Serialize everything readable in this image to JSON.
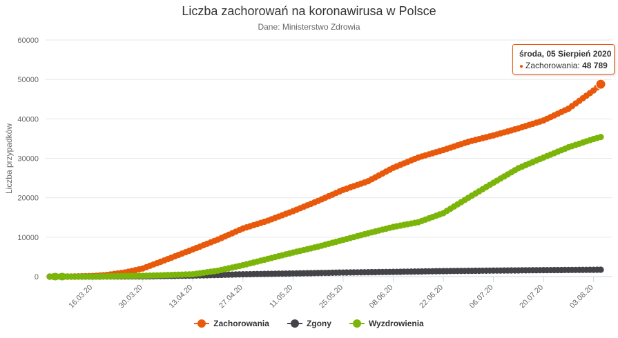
{
  "chart_data": {
    "type": "line",
    "title": "Liczba zachorowań na koronawirusa w Polsce",
    "subtitle": "Dane: Ministerstwo Zdrowia",
    "ylabel": "Liczba przypadków",
    "ylim": [
      0,
      60000
    ],
    "yticks": [
      0,
      10000,
      20000,
      30000,
      40000,
      50000,
      60000
    ],
    "ytick_labels": [
      "0",
      "10000",
      "20000",
      "30000",
      "40000",
      "50000",
      "60000"
    ],
    "x_start": "2020-03-04",
    "x_end": "2020-08-05",
    "xtick_labels": [
      "16.03.20",
      "30.03.20",
      "13.04.20",
      "27.04.20",
      "11.05.20",
      "25.05.20",
      "08.06.20",
      "22.06.20",
      "06.07.20",
      "20.07.20",
      "03.08.20"
    ],
    "xtick_dates": [
      "2020-03-16",
      "2020-03-30",
      "2020-04-13",
      "2020-04-27",
      "2020-05-11",
      "2020-05-25",
      "2020-06-08",
      "2020-06-22",
      "2020-07-06",
      "2020-07-20",
      "2020-08-03"
    ],
    "legend_position": "bottom-center",
    "grid": true,
    "series": [
      {
        "name": "Zachorowania",
        "color": "#e8590c",
        "points": [
          [
            "2020-03-04",
            0
          ],
          [
            "2020-03-10",
            20
          ],
          [
            "2020-03-16",
            150
          ],
          [
            "2020-03-20",
            430
          ],
          [
            "2020-03-25",
            1050
          ],
          [
            "2020-03-30",
            2050
          ],
          [
            "2020-04-05",
            4100
          ],
          [
            "2020-04-13",
            6900
          ],
          [
            "2020-04-20",
            9400
          ],
          [
            "2020-04-27",
            12200
          ],
          [
            "2020-05-04",
            14200
          ],
          [
            "2020-05-11",
            16600
          ],
          [
            "2020-05-18",
            19200
          ],
          [
            "2020-05-25",
            22000
          ],
          [
            "2020-06-01",
            24200
          ],
          [
            "2020-06-08",
            27600
          ],
          [
            "2020-06-15",
            30200
          ],
          [
            "2020-06-22",
            32100
          ],
          [
            "2020-06-29",
            34200
          ],
          [
            "2020-07-06",
            35800
          ],
          [
            "2020-07-13",
            37600
          ],
          [
            "2020-07-20",
            39600
          ],
          [
            "2020-07-27",
            42600
          ],
          [
            "2020-08-03",
            47200
          ],
          [
            "2020-08-05",
            48789
          ]
        ]
      },
      {
        "name": "Zgony",
        "color": "#434348",
        "points": [
          [
            "2020-03-04",
            0
          ],
          [
            "2020-03-16",
            5
          ],
          [
            "2020-03-30",
            40
          ],
          [
            "2020-04-13",
            250
          ],
          [
            "2020-04-27",
            590
          ],
          [
            "2020-05-11",
            800
          ],
          [
            "2020-05-25",
            1040
          ],
          [
            "2020-06-08",
            1200
          ],
          [
            "2020-06-22",
            1400
          ],
          [
            "2020-07-06",
            1530
          ],
          [
            "2020-07-20",
            1640
          ],
          [
            "2020-08-03",
            1730
          ],
          [
            "2020-08-05",
            1756
          ]
        ]
      },
      {
        "name": "Wyzdrowienia",
        "color": "#7cb50a",
        "points": [
          [
            "2020-03-04",
            0
          ],
          [
            "2020-03-16",
            10
          ],
          [
            "2020-03-30",
            200
          ],
          [
            "2020-04-13",
            600
          ],
          [
            "2020-04-20",
            1500
          ],
          [
            "2020-04-27",
            2900
          ],
          [
            "2020-05-04",
            4500
          ],
          [
            "2020-05-11",
            6100
          ],
          [
            "2020-05-18",
            7600
          ],
          [
            "2020-05-25",
            9300
          ],
          [
            "2020-06-01",
            11000
          ],
          [
            "2020-06-08",
            12600
          ],
          [
            "2020-06-15",
            13800
          ],
          [
            "2020-06-22",
            16100
          ],
          [
            "2020-06-29",
            20000
          ],
          [
            "2020-07-06",
            23800
          ],
          [
            "2020-07-13",
            27500
          ],
          [
            "2020-07-20",
            30200
          ],
          [
            "2020-07-27",
            32800
          ],
          [
            "2020-08-03",
            34900
          ],
          [
            "2020-08-05",
            35400
          ]
        ]
      }
    ],
    "tooltip": {
      "title": "środa, 05 Sierpień 2020",
      "series_label": "Zachorowania",
      "value": "48 789"
    }
  }
}
